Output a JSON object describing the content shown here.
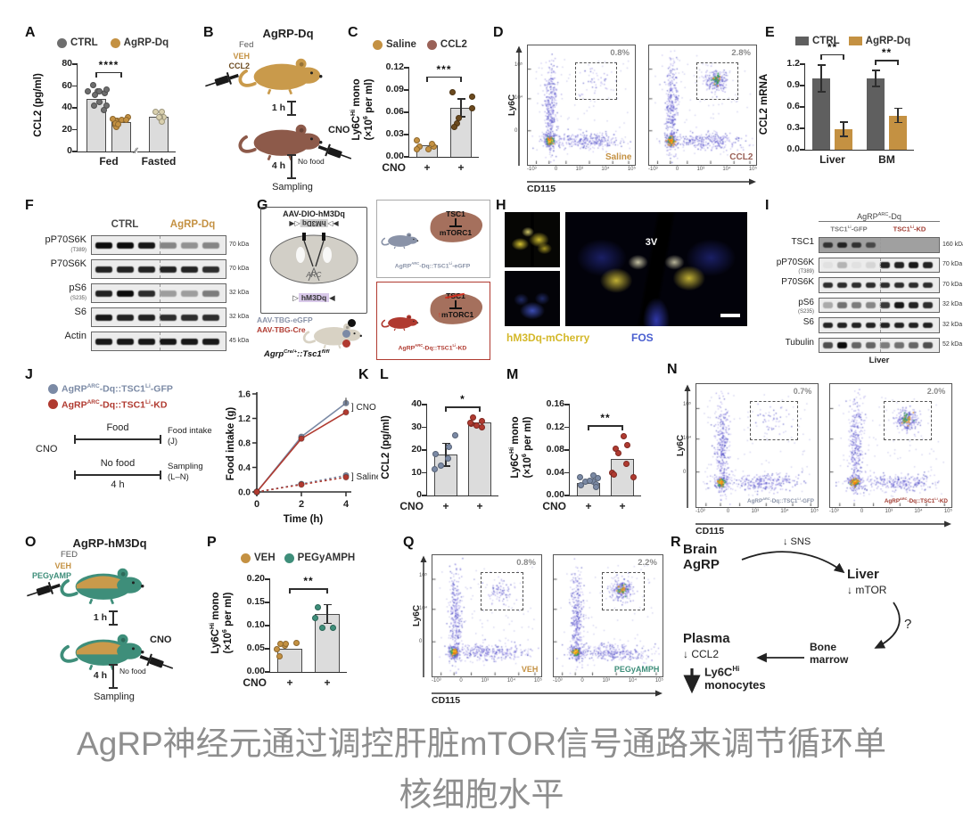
{
  "figure": {
    "flow_ticks": {
      "x": [
        "-10³",
        "0",
        "10³",
        "10⁴",
        "10⁵"
      ],
      "y": [
        "10⁵",
        "10⁴",
        "0"
      ]
    },
    "panels": {
      "A": {
        "label": "A",
        "legend": [
          {
            "label": "CTRL",
            "color": "#6e6e6e"
          },
          {
            "label": "AgRP-Dq",
            "color": "#c49142"
          }
        ],
        "chart": {
          "ylabel": "CCL2 (pg/ml)",
          "yticks": [
            "0",
            "20",
            "40",
            "60",
            "80"
          ],
          "ymax": 80,
          "bars": [
            {
              "value": 48,
              "dots": {
                "n": 11,
                "color": "#6e6e6e",
                "spread": 15
              }
            },
            {
              "value": 27,
              "dots": {
                "n": 10,
                "color": "#c49142",
                "spread": 5
              }
            },
            {
              "value": 32,
              "dots": {
                "n": 7,
                "color": "#d9d0ae",
                "spread": 5
              }
            }
          ],
          "xgroups": [
            {
              "label": "Fed",
              "bars": [
                0,
                1
              ]
            },
            {
              "label": "Fasted",
              "bars": [
                2
              ]
            }
          ],
          "sig": [
            {
              "from": 0,
              "to": 1,
              "label": "****"
            }
          ]
        }
      },
      "B": {
        "label": "B",
        "title": "AgRP-Dq",
        "subtitle": "Fed",
        "inject_labels": [
          "VEH",
          "CCL2"
        ],
        "inject_colors": [
          "#c49142",
          "#6b4a1e"
        ],
        "t1": "1 h",
        "cno": "CNO",
        "t2": "4 h",
        "nofood": "No food",
        "sampling": "Sampling",
        "mouse_colors": [
          "#c99a4b",
          "#8d5a4a"
        ]
      },
      "C": {
        "label": "C",
        "legend": [
          {
            "label": "Saline",
            "color": "#c49142"
          },
          {
            "label": "CCL2",
            "color": "#9a6157"
          }
        ],
        "chart": {
          "ylabel": "Ly6C[Hi] mono",
          "ylabel2": "(×10[6] per ml)",
          "yticks": [
            "0.00",
            "0.03",
            "0.06",
            "0.09",
            "0.12"
          ],
          "ymax": 0.12,
          "bars": [
            {
              "value": 0.016,
              "dots": {
                "n": 6,
                "color": "#c49142",
                "spread": 0.006
              }
            },
            {
              "value": 0.066,
              "err": 0.012,
              "dots": {
                "n": 6,
                "color": "#6b4a1e",
                "spread": 0.028
              }
            }
          ],
          "sig": [
            {
              "from": 0,
              "to": 1,
              "label": "***"
            }
          ],
          "xrow": {
            "label": "CNO",
            "marks": [
              "+",
              "+"
            ]
          }
        }
      },
      "D": {
        "label": "D",
        "ylab": "Ly6C",
        "xlab": "CD115",
        "plots": [
          {
            "pct": "0.8%",
            "name": "Saline",
            "color": "#c49142",
            "gate_density": "low",
            "seed": 11
          },
          {
            "pct": "2.8%",
            "name": "CCL2",
            "color": "#9a6157",
            "gate_density": "high",
            "seed": 22
          }
        ]
      },
      "E": {
        "label": "E",
        "legend": [
          {
            "label": "CTRL",
            "color": "#5f5f5f"
          },
          {
            "label": "AgRP-Dq",
            "color": "#c49142"
          }
        ],
        "chart": {
          "ylabel": "CCL2 mRNA",
          "yticks": [
            "0.0",
            "0.3",
            "0.6",
            "0.9",
            "1.2"
          ],
          "ymax": 1.2,
          "bars": [
            {
              "value": 1.0,
              "err": 0.19,
              "color": "#5f5f5f"
            },
            {
              "value": 0.29,
              "err": 0.1,
              "color": "#c49142"
            },
            {
              "value": 1.0,
              "err": 0.11,
              "color": "#5f5f5f"
            },
            {
              "value": 0.48,
              "err": 0.1,
              "color": "#c49142"
            }
          ],
          "xgroups": [
            {
              "label": "Liver",
              "bars": [
                0,
                1
              ]
            },
            {
              "label": "BM",
              "bars": [
                2,
                3
              ]
            }
          ],
          "sig": [
            {
              "from": 0,
              "to": 1,
              "label": "**"
            },
            {
              "from": 2,
              "to": 3,
              "label": "**"
            }
          ]
        }
      },
      "F": {
        "label": "F",
        "col_headers": [
          {
            "label": "CTRL",
            "color": "#4a4a4a"
          },
          {
            "label": "AgRP-Dq",
            "color": "#c49142"
          }
        ],
        "rows": [
          {
            "name": "pP70S6K",
            "sub": "(T389)",
            "kda": "70 kDa",
            "lanes": [
              1,
              1,
              0.95,
              0.45,
              0.4,
              0.45
            ]
          },
          {
            "name": "P70S6K",
            "kda": "70 kDa",
            "lanes": [
              0.9,
              0.9,
              0.9,
              0.9,
              0.9,
              0.85
            ]
          },
          {
            "name": "pS6",
            "sub": "(S235)",
            "kda": "32 kDa",
            "lanes": [
              0.9,
              1,
              0.85,
              0.35,
              0.35,
              0.5
            ]
          },
          {
            "name": "S6",
            "kda": "32 kDa",
            "lanes": [
              0.95,
              0.9,
              0.9,
              0.85,
              0.85,
              0.85
            ]
          },
          {
            "name": "Actin",
            "kda": "45 kDa",
            "lanes": [
              0.95,
              0.95,
              0.95,
              0.95,
              0.95,
              0.95
            ]
          }
        ]
      },
      "G": {
        "label": "G",
        "box_title": "AAV-DIO-hM3Dq",
        "construct": "hM3Dq",
        "region": "ARC",
        "aav1": "AAV-TBG-eGFP",
        "aav2": "AAV-TBG-Cre",
        "mouse_line": "Agrp[Cre/+]::Tsc1[fl/fl]",
        "top_box": {
          "tsc1": "TSC1",
          "mtorc1": "mTORC1",
          "caption": "AgRP[ARC]-Dq::TSC1[Li]-eGFP",
          "color": "#8a93a8"
        },
        "bottom_box": {
          "tsc1": "TSC1",
          "mtorc1": "mTORC1",
          "up": "↑",
          "caption": "AgRP[ARC]-Dq::TSC1[Li]-KD",
          "color": "#b03a30"
        }
      },
      "H": {
        "label": "H",
        "v3": "3V",
        "legend1": "hM3Dq-mCherry",
        "legend1_color": "#d4b82a",
        "legend2": "FOS",
        "legend2_color": "#4a5fd0"
      },
      "I": {
        "label": "I",
        "header": "AgRP[ARC]-Dq",
        "footer": "Liver",
        "col1": {
          "label": "TSC1[Li]-GFP",
          "color": "#777777"
        },
        "col2": {
          "label": "TSC1[Li]-KD",
          "color": "#a03a30"
        },
        "rows": [
          {
            "name": "TSC1",
            "kda": "160 kDa",
            "dark": true,
            "lanes": [
              0.75,
              0.85,
              0.75,
              0.6,
              0,
              0,
              0,
              0
            ]
          },
          {
            "name": "pP70S6K",
            "sub": "(T389)",
            "kda": "70 kDa",
            "lanes": [
              0.05,
              0.25,
              0.05,
              0.1,
              0.9,
              0.9,
              0.95,
              0.9
            ]
          },
          {
            "name": "P70S6K",
            "kda": "70 kDa",
            "lanes": [
              0.85,
              0.85,
              0.85,
              0.85,
              0.85,
              0.85,
              0.85,
              0.85
            ]
          },
          {
            "name": "pS6",
            "sub": "(S235)",
            "kda": "32 kDa",
            "lanes": [
              0.3,
              0.55,
              0.5,
              0.45,
              0.8,
              0.95,
              0.9,
              0.85
            ]
          },
          {
            "name": "S6",
            "kda": "32 kDa",
            "lanes": [
              0.9,
              0.9,
              0.9,
              0.9,
              0.9,
              0.9,
              0.9,
              0.9
            ]
          },
          {
            "name": "Tubulin",
            "kda": "52 kDa",
            "lanes": [
              0.7,
              1,
              0.6,
              0.6,
              0.5,
              0.55,
              0.6,
              0.7
            ]
          }
        ]
      },
      "J": {
        "label": "J",
        "legend": [
          {
            "label": "AgRP[ARC]-Dq::TSC1[Li]-GFP",
            "color": "#7b8aa5"
          },
          {
            "label": "AgRP[ARC]-Dq::TSC1[Li]-KD",
            "color": "#b03a30"
          }
        ],
        "cno": "CNO",
        "food": "Food",
        "food_out1": "Food intake",
        "food_out2": "(J)",
        "nofood": "No food",
        "dur": "4 h",
        "samp1": "Sampling",
        "samp2": "(L–N)"
      },
      "K": {
        "label": "K",
        "chart": {
          "ylabel": "Food intake (g)",
          "xlabel": "Time (h)",
          "yticks": [
            "0.0",
            "0.4",
            "0.8",
            "1.2",
            "1.6"
          ],
          "ymax": 1.6,
          "xticks": [
            "0",
            "2",
            "4"
          ],
          "series": [
            {
              "name": "GFP-Saline",
              "color": "#7b8aa5",
              "dash": true,
              "values": [
                0,
                0.13,
                0.27
              ]
            },
            {
              "name": "KD-Saline",
              "color": "#b03a30",
              "dash": true,
              "values": [
                0,
                0.12,
                0.24
              ]
            },
            {
              "name": "GFP-CNO",
              "color": "#7b8aa5",
              "dash": false,
              "values": [
                0,
                0.9,
                1.45
              ]
            },
            {
              "name": "KD-CNO",
              "color": "#b03a30",
              "dash": false,
              "values": [
                0,
                0.87,
                1.3
              ]
            }
          ],
          "ann_cno": "] CNO",
          "ann_sal": "] Saline"
        }
      },
      "L": {
        "label": "L",
        "chart": {
          "ylabel": "CCL2 (pg/ml)",
          "yticks": [
            "0",
            "10",
            "20",
            "30",
            "40"
          ],
          "ymax": 40,
          "bars": [
            {
              "value": 18,
              "err": 5,
              "dots": {
                "n": 6,
                "color": "#7b8aa5",
                "spread": 10
              }
            },
            {
              "value": 32,
              "dots": {
                "n": 6,
                "color": "#b03a30",
                "spread": 2.5
              }
            }
          ],
          "sig": [
            {
              "from": 0,
              "to": 1,
              "label": "*"
            }
          ],
          "xrow": {
            "label": "CNO",
            "marks": [
              "+",
              "+"
            ]
          }
        }
      },
      "M": {
        "label": "M",
        "chart": {
          "ylabel": "Ly6C[Hi] mono",
          "ylabel2": "(×10[6] per ml)",
          "yticks": [
            "0.00",
            "0.04",
            "0.08",
            "0.12",
            "0.16"
          ],
          "ymax": 0.16,
          "bars": [
            {
              "value": 0.022,
              "dots": {
                "n": 9,
                "color": "#7b8aa5",
                "spread": 0.013
              }
            },
            {
              "value": 0.065,
              "dots": {
                "n": 8,
                "color": "#b03a30",
                "spread": 0.04
              }
            }
          ],
          "sig": [
            {
              "from": 0,
              "to": 1,
              "label": "**"
            }
          ],
          "xrow": {
            "label": "CNO",
            "marks": [
              "+",
              "+"
            ]
          }
        }
      },
      "N": {
        "label": "N",
        "ylab": "Ly6C",
        "xlab": "CD115",
        "plots": [
          {
            "pct": "0.7%",
            "name": "AgRP[ARC]-Dq::TSC1[Li]-GFP",
            "color": "#8a93a8",
            "gate_density": "low",
            "seed": 33
          },
          {
            "pct": "2.0%",
            "name": "AgRP[ARC]-Dq::TSC1[Li]-KD",
            "color": "#a03a30",
            "gate_density": "high",
            "seed": 44
          }
        ]
      },
      "O": {
        "label": "O",
        "title": "AgRP-hM3Dq",
        "subtitle": "FED",
        "inject_labels": [
          "VEH",
          "PEGyAMP"
        ],
        "inject_colors": [
          "#c49142",
          "#3e8e7a"
        ],
        "t1": "1 h",
        "cno": "CNO",
        "t2": "4 h",
        "nofood": "No food",
        "sampling": "Sampling",
        "mouse_colors": [
          "#3e8e7a",
          "#3e8e7a"
        ],
        "mouse_top": "#c99a4b"
      },
      "P": {
        "label": "P",
        "legend": [
          {
            "label": "VEH",
            "color": "#c49142"
          },
          {
            "label": "PEGyAMPH",
            "color": "#3e8e7a"
          }
        ],
        "chart": {
          "ylabel": "Ly6C[Hi] mono",
          "ylabel2": "(×10[6] per ml)",
          "yticks": [
            "0.00",
            "0.05",
            "0.10",
            "0.15",
            "0.20"
          ],
          "ymax": 0.2,
          "bars": [
            {
              "value": 0.05,
              "dots": {
                "n": 6,
                "color": "#c49142",
                "spread": 0.017
              }
            },
            {
              "value": 0.125,
              "err": 0.02,
              "dots": {
                "n": 4,
                "color": "#3e8e7a",
                "spread": 0.032
              }
            }
          ],
          "sig": [
            {
              "from": 0,
              "to": 1,
              "label": "**"
            }
          ],
          "xrow": {
            "label": "CNO",
            "marks": [
              "+",
              "+"
            ]
          }
        }
      },
      "Q": {
        "label": "Q",
        "ylab": "Ly6C",
        "xlab": "CD115",
        "plots": [
          {
            "pct": "0.8%",
            "name": "VEH",
            "color": "#c49142",
            "gate_density": "mid",
            "seed": 55
          },
          {
            "pct": "2.2%",
            "name": "PEGyAMPH",
            "color": "#3e8e7a",
            "gate_density": "high",
            "seed": 66
          }
        ]
      },
      "R": {
        "label": "R",
        "nodes": {
          "brain1": "Brain",
          "brain2": "AgRP",
          "sns": "↓ SNS",
          "liver": "Liver",
          "mtor": "↓ mTOR",
          "q": "?",
          "bm1": "Bone",
          "bm2": "marrow",
          "plasma": "Plasma",
          "ccl2": "↓ CCL2",
          "mono1": "Ly6C[Hi]",
          "mono2": "monocytes"
        }
      }
    },
    "caption": {
      "line1": "AgRP神经元通过调控肝脏mTOR信号通路来调节循环单",
      "line2": "核细胞水平"
    }
  }
}
